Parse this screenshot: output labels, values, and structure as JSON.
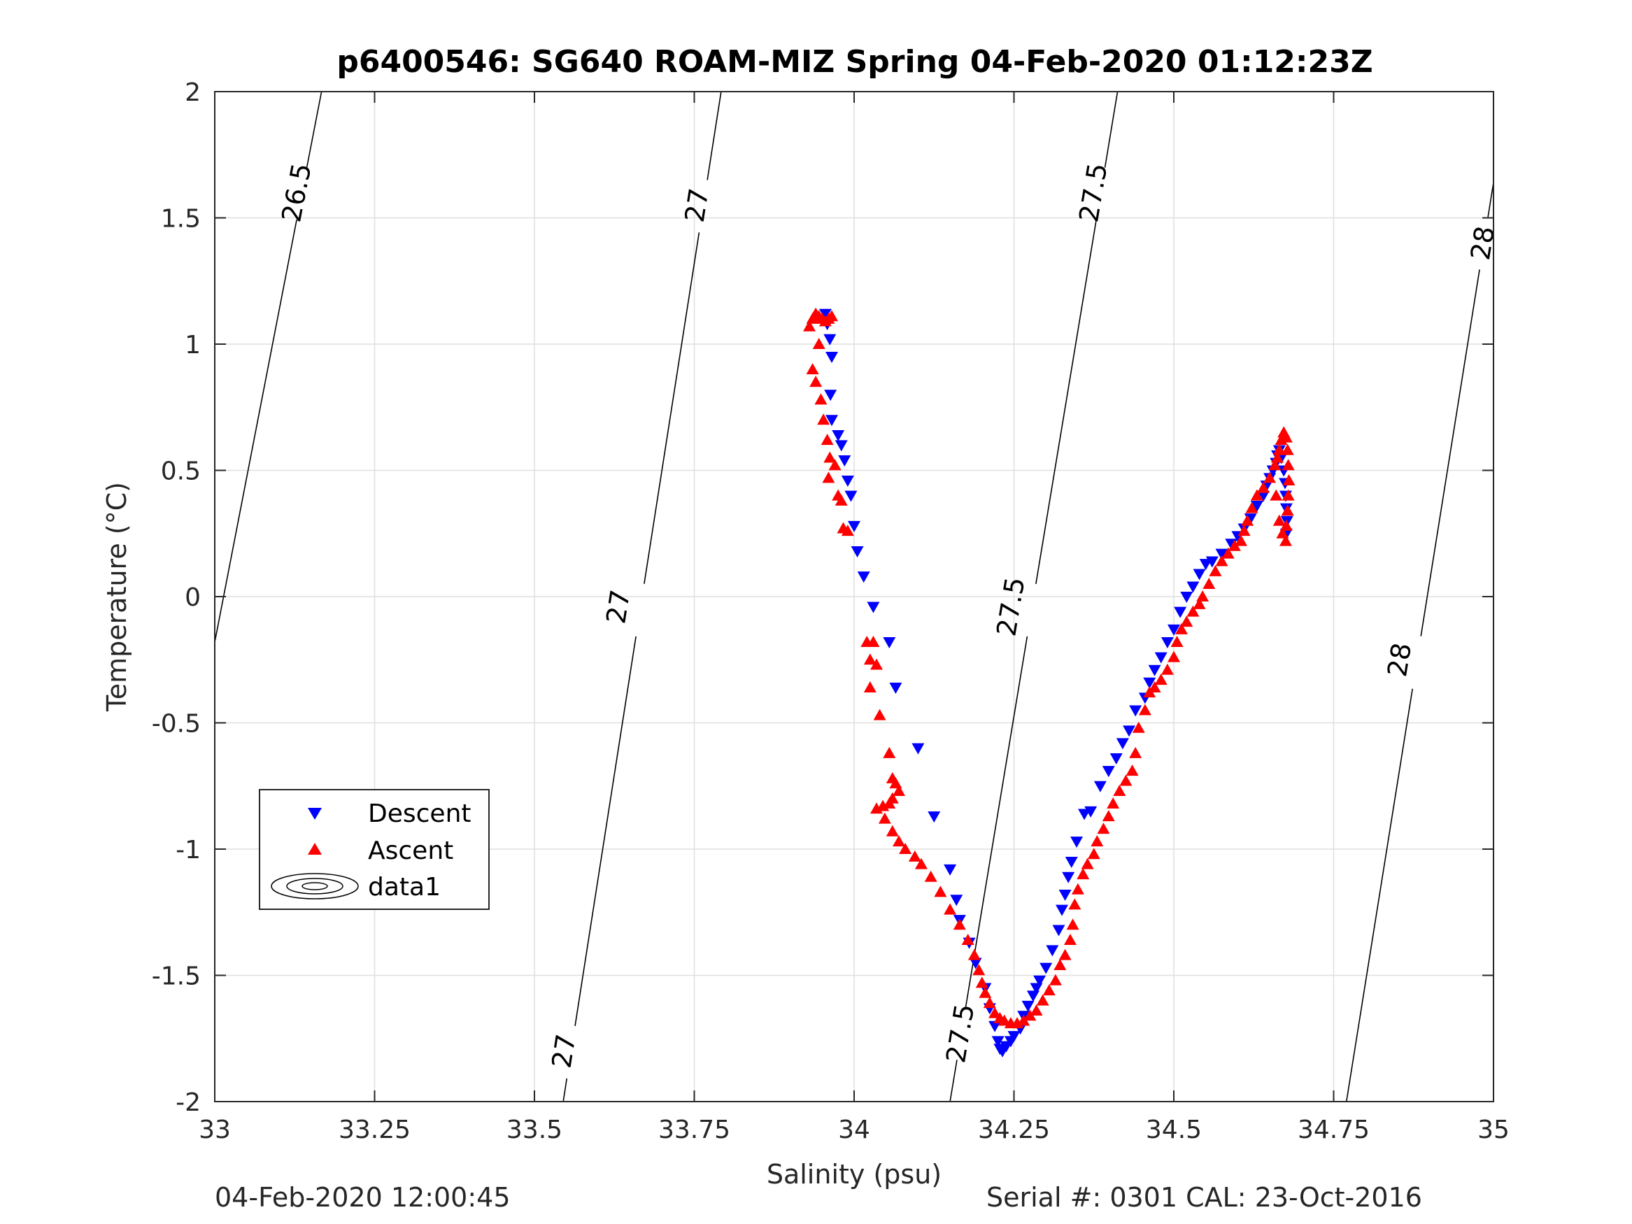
{
  "footer": {
    "date_text": "04-Feb-2020 12:00:45",
    "serial_text": "Serial #: 0301  CAL: 23-Oct-2016"
  },
  "chart_data": {
    "type": "scatter",
    "title": "p6400546: SG640 ROAM-MIZ Spring 04-Feb-2020 01:12:23Z",
    "xlabel": "Salinity (psu)",
    "ylabel": "Temperature (°C)",
    "xlim": [
      33,
      35
    ],
    "ylim": [
      -2,
      2
    ],
    "xticks": [
      33,
      33.25,
      33.5,
      33.75,
      34,
      34.25,
      34.5,
      34.75,
      35
    ],
    "xtick_labels": [
      "33",
      "33.25",
      "33.5",
      "33.75",
      "34",
      "34.25",
      "34.5",
      "34.75",
      "35"
    ],
    "yticks": [
      -2,
      -1.5,
      -1,
      -0.5,
      0,
      0.5,
      1,
      1.5,
      2
    ],
    "ytick_labels": [
      "-2",
      "-1.5",
      "-1",
      "-0.5",
      "0",
      "0.5",
      "1",
      "1.5",
      "2"
    ],
    "grid": true,
    "legend_position": "lower-left",
    "legend": [
      "Descent",
      "Ascent",
      "data1"
    ],
    "colors": {
      "descent": "#0000ff",
      "ascent": "#ff0000",
      "contour": "#000000",
      "grid": "#dfdfdf"
    },
    "series": [
      {
        "name": "Descent",
        "marker": "triangle-down",
        "points": [
          [
            33.955,
            1.12
          ],
          [
            33.958,
            1.08
          ],
          [
            33.962,
            1.02
          ],
          [
            33.965,
            0.95
          ],
          [
            33.963,
            0.8
          ],
          [
            33.965,
            0.7
          ],
          [
            33.975,
            0.64
          ],
          [
            33.98,
            0.6
          ],
          [
            33.985,
            0.54
          ],
          [
            33.99,
            0.46
          ],
          [
            33.995,
            0.4
          ],
          [
            34.0,
            0.28
          ],
          [
            34.005,
            0.18
          ],
          [
            34.015,
            0.08
          ],
          [
            34.03,
            -0.04
          ],
          [
            34.055,
            -0.18
          ],
          [
            34.065,
            -0.36
          ],
          [
            34.1,
            -0.6
          ],
          [
            34.125,
            -0.87
          ],
          [
            34.15,
            -1.08
          ],
          [
            34.16,
            -1.2
          ],
          [
            34.165,
            -1.28
          ],
          [
            34.18,
            -1.37
          ],
          [
            34.19,
            -1.45
          ],
          [
            34.205,
            -1.55
          ],
          [
            34.212,
            -1.63
          ],
          [
            34.22,
            -1.7
          ],
          [
            34.225,
            -1.76
          ],
          [
            34.228,
            -1.79
          ],
          [
            34.232,
            -1.8
          ],
          [
            34.238,
            -1.78
          ],
          [
            34.245,
            -1.76
          ],
          [
            34.25,
            -1.74
          ],
          [
            34.26,
            -1.71
          ],
          [
            34.265,
            -1.66
          ],
          [
            34.272,
            -1.62
          ],
          [
            34.28,
            -1.58
          ],
          [
            34.285,
            -1.55
          ],
          [
            34.29,
            -1.52
          ],
          [
            34.3,
            -1.47
          ],
          [
            34.31,
            -1.4
          ],
          [
            34.32,
            -1.32
          ],
          [
            34.325,
            -1.24
          ],
          [
            34.33,
            -1.18
          ],
          [
            34.335,
            -1.11
          ],
          [
            34.34,
            -1.05
          ],
          [
            34.348,
            -0.97
          ],
          [
            34.36,
            -0.86
          ],
          [
            34.37,
            -0.85
          ],
          [
            34.385,
            -0.75
          ],
          [
            34.398,
            -0.69
          ],
          [
            34.41,
            -0.64
          ],
          [
            34.42,
            -0.58
          ],
          [
            34.43,
            -0.53
          ],
          [
            34.44,
            -0.45
          ],
          [
            34.455,
            -0.4
          ],
          [
            34.462,
            -0.34
          ],
          [
            34.47,
            -0.29
          ],
          [
            34.48,
            -0.24
          ],
          [
            34.49,
            -0.18
          ],
          [
            34.5,
            -0.13
          ],
          [
            34.51,
            -0.06
          ],
          [
            34.52,
            0.0
          ],
          [
            34.53,
            0.04
          ],
          [
            34.54,
            0.09
          ],
          [
            34.55,
            0.13
          ],
          [
            34.56,
            0.14
          ],
          [
            34.575,
            0.17
          ],
          [
            34.59,
            0.21
          ],
          [
            34.6,
            0.24
          ],
          [
            34.61,
            0.27
          ],
          [
            34.62,
            0.31
          ],
          [
            34.63,
            0.36
          ],
          [
            34.64,
            0.4
          ],
          [
            34.645,
            0.44
          ],
          [
            34.65,
            0.47
          ],
          [
            34.655,
            0.5
          ],
          [
            34.66,
            0.53
          ],
          [
            34.662,
            0.56
          ],
          [
            34.665,
            0.58
          ],
          [
            34.668,
            0.55
          ],
          [
            34.672,
            0.5
          ],
          [
            34.674,
            0.45
          ],
          [
            34.675,
            0.4
          ],
          [
            34.676,
            0.35
          ],
          [
            34.677,
            0.3
          ],
          [
            34.676,
            0.25
          ]
        ]
      },
      {
        "name": "Ascent",
        "marker": "triangle-up",
        "points": [
          [
            33.93,
            1.07
          ],
          [
            33.935,
            1.1
          ],
          [
            33.94,
            1.12
          ],
          [
            33.945,
            1.11
          ],
          [
            33.95,
            1.1
          ],
          [
            33.955,
            1.09
          ],
          [
            33.96,
            1.1
          ],
          [
            33.965,
            1.11
          ],
          [
            33.945,
            1.0
          ],
          [
            33.935,
            0.9
          ],
          [
            33.94,
            0.85
          ],
          [
            33.948,
            0.78
          ],
          [
            33.952,
            0.7
          ],
          [
            33.958,
            0.62
          ],
          [
            33.962,
            0.55
          ],
          [
            33.96,
            0.47
          ],
          [
            33.97,
            0.52
          ],
          [
            33.975,
            0.4
          ],
          [
            33.98,
            0.38
          ],
          [
            33.983,
            0.27
          ],
          [
            33.99,
            0.26
          ],
          [
            34.02,
            -0.18
          ],
          [
            34.025,
            -0.25
          ],
          [
            34.03,
            -0.18
          ],
          [
            34.035,
            -0.27
          ],
          [
            34.025,
            -0.36
          ],
          [
            34.04,
            -0.47
          ],
          [
            34.055,
            -0.62
          ],
          [
            34.06,
            -0.72
          ],
          [
            34.065,
            -0.74
          ],
          [
            34.07,
            -0.77
          ],
          [
            34.06,
            -0.8
          ],
          [
            34.055,
            -0.82
          ],
          [
            34.045,
            -0.83
          ],
          [
            34.035,
            -0.84
          ],
          [
            34.048,
            -0.88
          ],
          [
            34.06,
            -0.93
          ],
          [
            34.07,
            -0.97
          ],
          [
            34.08,
            -1.0
          ],
          [
            34.095,
            -1.03
          ],
          [
            34.105,
            -1.06
          ],
          [
            34.12,
            -1.11
          ],
          [
            34.135,
            -1.17
          ],
          [
            34.15,
            -1.24
          ],
          [
            34.165,
            -1.3
          ],
          [
            34.178,
            -1.36
          ],
          [
            34.188,
            -1.42
          ],
          [
            34.195,
            -1.48
          ],
          [
            34.2,
            -1.53
          ],
          [
            34.205,
            -1.57
          ],
          [
            34.212,
            -1.61
          ],
          [
            34.22,
            -1.65
          ],
          [
            34.228,
            -1.67
          ],
          [
            34.235,
            -1.68
          ],
          [
            34.245,
            -1.69
          ],
          [
            34.255,
            -1.69
          ],
          [
            34.265,
            -1.68
          ],
          [
            34.275,
            -1.66
          ],
          [
            34.285,
            -1.64
          ],
          [
            34.295,
            -1.6
          ],
          [
            34.305,
            -1.56
          ],
          [
            34.315,
            -1.52
          ],
          [
            34.322,
            -1.46
          ],
          [
            34.33,
            -1.42
          ],
          [
            34.338,
            -1.36
          ],
          [
            34.342,
            -1.3
          ],
          [
            34.345,
            -1.22
          ],
          [
            34.35,
            -1.16
          ],
          [
            34.358,
            -1.1
          ],
          [
            34.365,
            -1.06
          ],
          [
            34.375,
            -1.02
          ],
          [
            34.38,
            -0.97
          ],
          [
            34.39,
            -0.92
          ],
          [
            34.398,
            -0.87
          ],
          [
            34.405,
            -0.82
          ],
          [
            34.415,
            -0.77
          ],
          [
            34.425,
            -0.73
          ],
          [
            34.435,
            -0.69
          ],
          [
            34.44,
            -0.62
          ],
          [
            34.445,
            -0.52
          ],
          [
            34.455,
            -0.45
          ],
          [
            34.462,
            -0.38
          ],
          [
            34.47,
            -0.36
          ],
          [
            34.48,
            -0.33
          ],
          [
            34.49,
            -0.29
          ],
          [
            34.5,
            -0.24
          ],
          [
            34.505,
            -0.18
          ],
          [
            34.512,
            -0.13
          ],
          [
            34.52,
            -0.1
          ],
          [
            34.53,
            -0.06
          ],
          [
            34.54,
            -0.03
          ],
          [
            34.545,
            0.0
          ],
          [
            34.555,
            0.05
          ],
          [
            34.565,
            0.1
          ],
          [
            34.575,
            0.14
          ],
          [
            34.585,
            0.17
          ],
          [
            34.595,
            0.2
          ],
          [
            34.605,
            0.22
          ],
          [
            34.61,
            0.26
          ],
          [
            34.615,
            0.3
          ],
          [
            34.622,
            0.35
          ],
          [
            34.63,
            0.4
          ],
          [
            34.64,
            0.43
          ],
          [
            34.65,
            0.47
          ],
          [
            34.658,
            0.52
          ],
          [
            34.662,
            0.55
          ],
          [
            34.665,
            0.58
          ],
          [
            34.668,
            0.62
          ],
          [
            34.672,
            0.65
          ],
          [
            34.676,
            0.63
          ],
          [
            34.678,
            0.58
          ],
          [
            34.679,
            0.52
          ],
          [
            34.68,
            0.46
          ],
          [
            34.679,
            0.4
          ],
          [
            34.678,
            0.34
          ],
          [
            34.676,
            0.28
          ],
          [
            34.675,
            0.22
          ],
          [
            34.66,
            0.4
          ],
          [
            34.665,
            0.3
          ],
          [
            34.67,
            0.25
          ]
        ]
      }
    ],
    "density_contours": [
      {
        "label": "26.5",
        "points": [
          [
            33.0,
            -0.18
          ],
          [
            33.167,
            2.0
          ]
        ],
        "label_at": [
          [
            33.128,
            1.6
          ]
        ]
      },
      {
        "label": "27",
        "points": [
          [
            33.545,
            -2.0
          ],
          [
            33.792,
            2.0
          ]
        ],
        "label_at": [
          [
            33.546,
            -1.8
          ],
          [
            33.631,
            -0.04
          ],
          [
            33.754,
            1.55
          ]
        ]
      },
      {
        "label": "27.5",
        "points": [
          [
            34.15,
            -2.0
          ],
          [
            34.412,
            2.0
          ]
        ],
        "label_at": [
          [
            34.166,
            -1.73
          ],
          [
            34.245,
            -0.04
          ],
          [
            34.374,
            1.6
          ]
        ]
      },
      {
        "label": "28",
        "points": [
          [
            34.77,
            -2.0
          ],
          [
            35.0,
            1.64
          ]
        ],
        "label_at": [
          [
            34.853,
            -0.25
          ],
          [
            34.983,
            1.4
          ]
        ]
      }
    ]
  }
}
